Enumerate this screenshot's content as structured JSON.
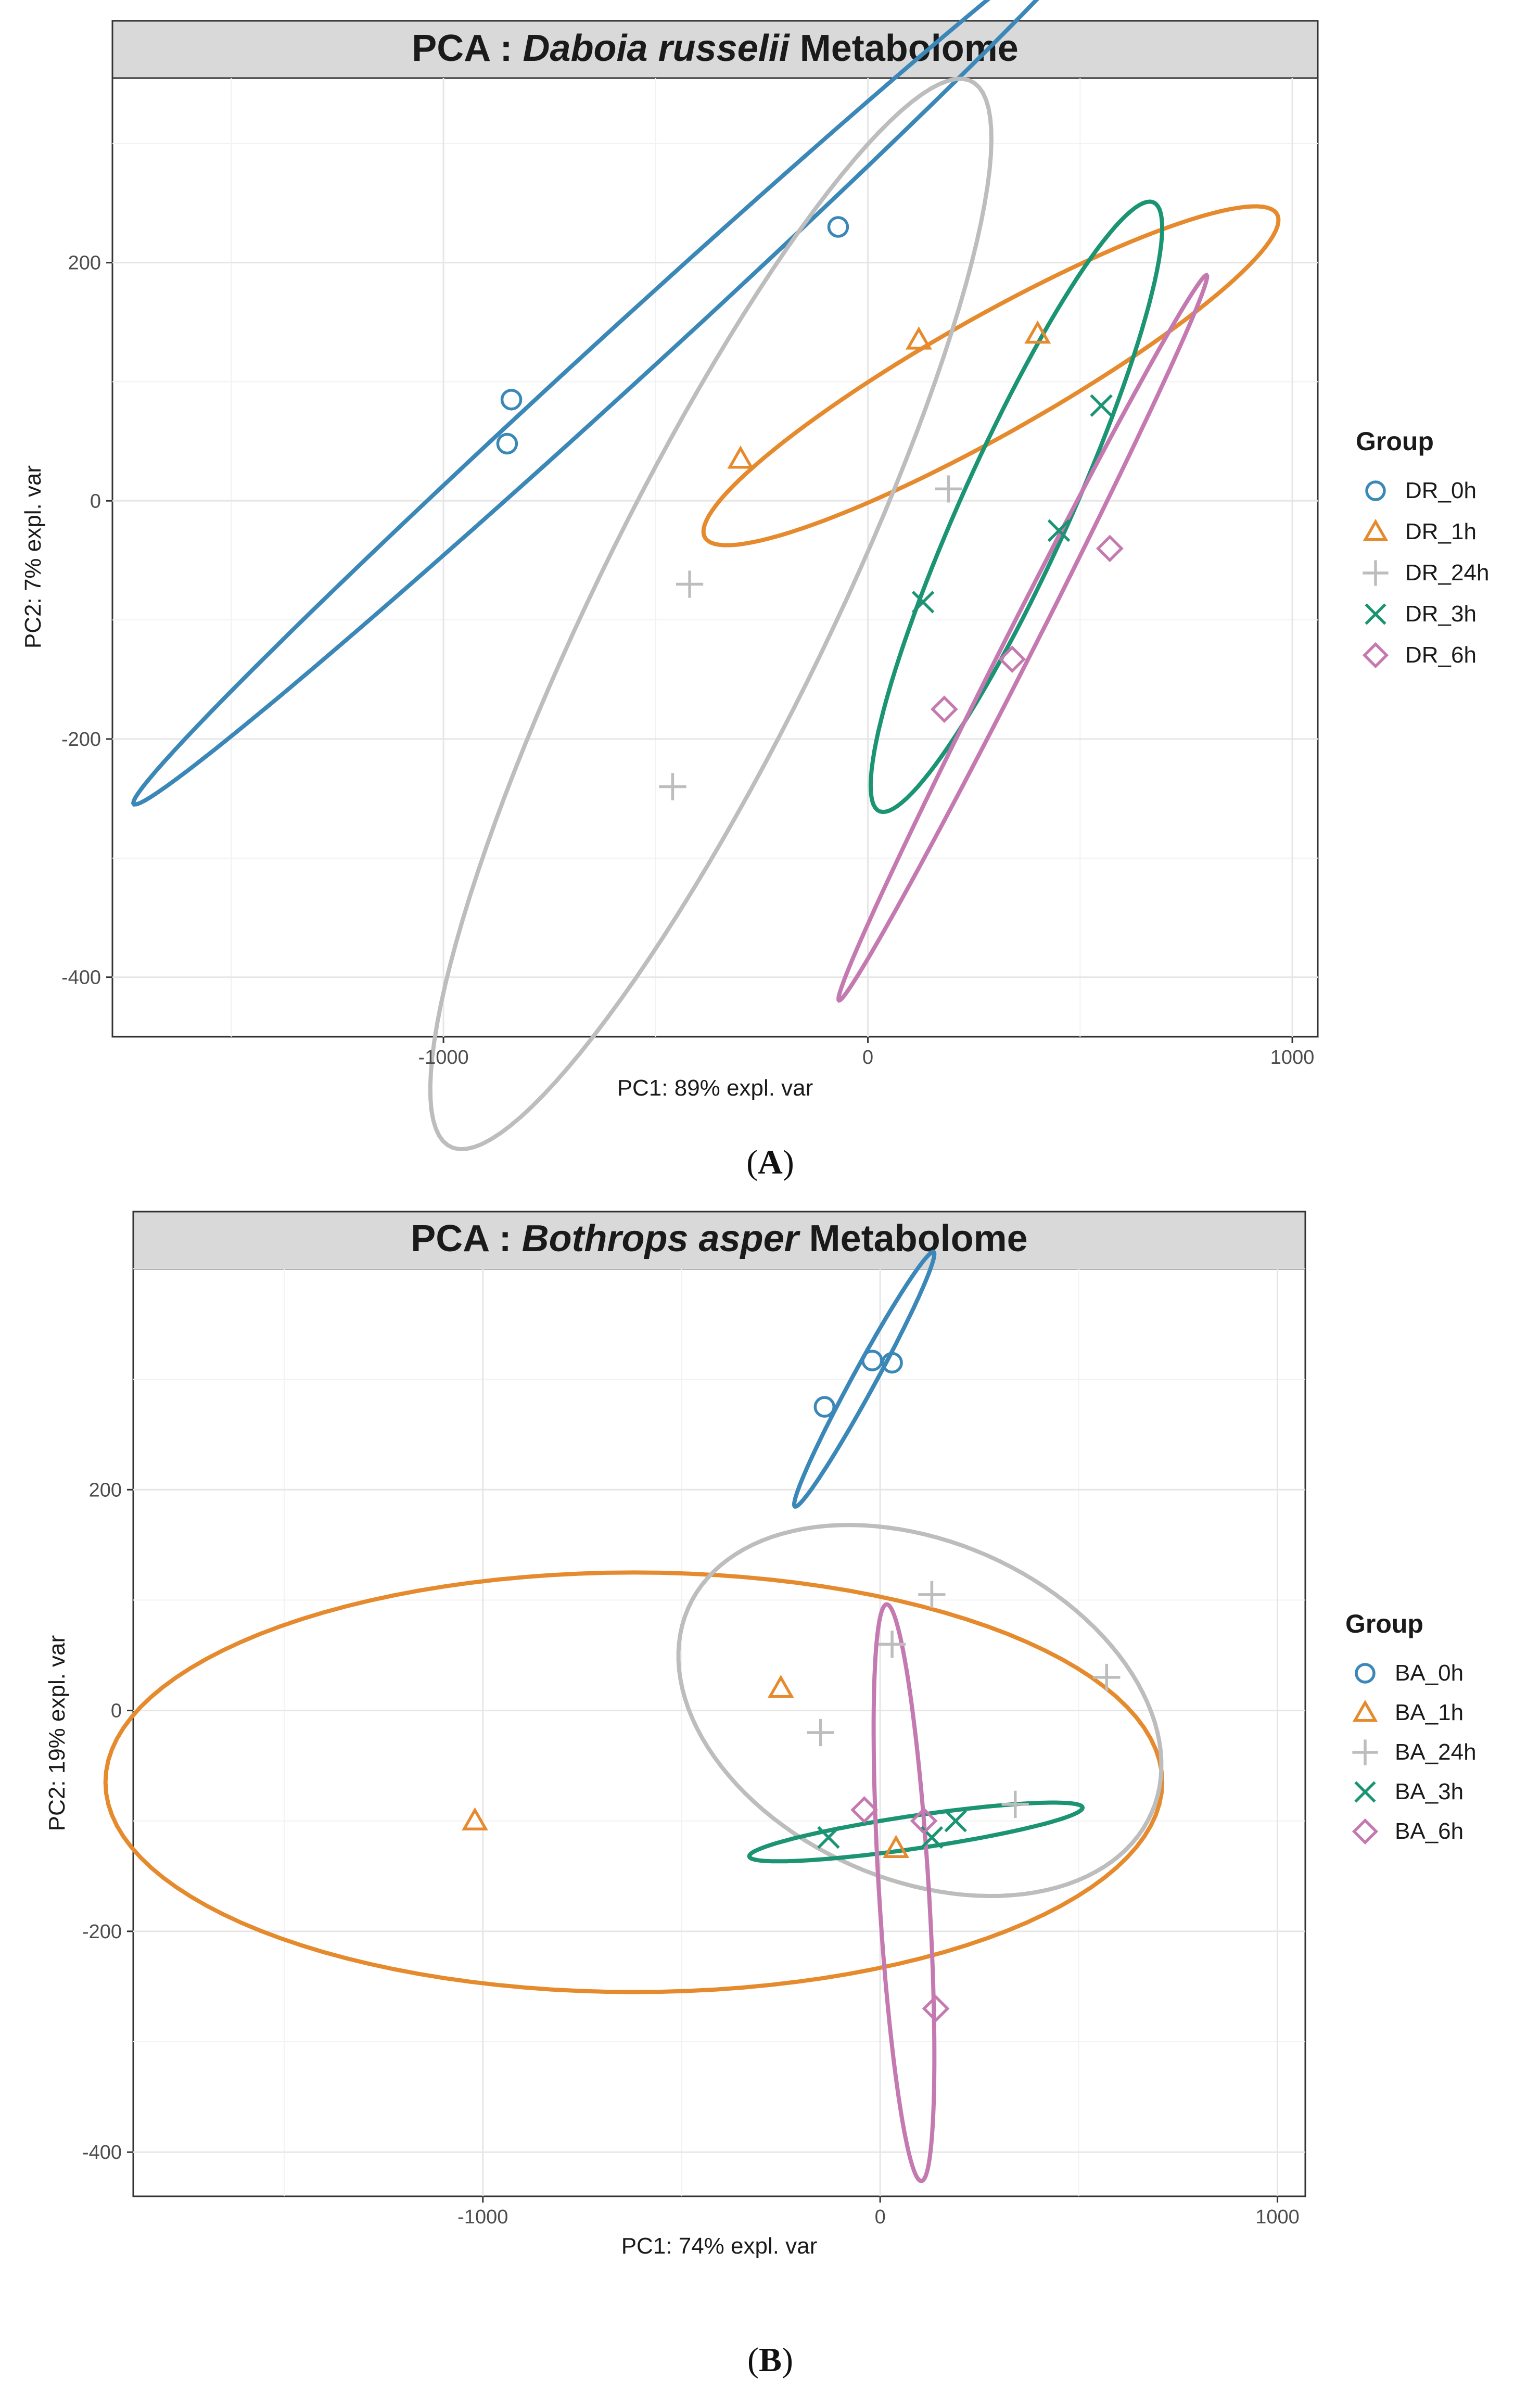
{
  "colors": {
    "DR_0h": "#3A87B8",
    "DR_1h": "#E68A2E",
    "DR_24h": "#BDBDBD",
    "DR_3h": "#1A9473",
    "DR_6h": "#C47AB0",
    "BA_0h": "#3A87B8",
    "BA_1h": "#E68A2E",
    "BA_24h": "#BDBDBD",
    "BA_3h": "#1A9473",
    "BA_6h": "#C47AB0"
  },
  "chart_data": [
    {
      "type": "scatter",
      "panel_label": "A",
      "title_prefix": "PCA : ",
      "title_species": "Daboia russelii",
      "title_suffix": " Metabolome",
      "xlabel": "PC1: 89% expl. var",
      "ylabel": "PC2: 7% expl. var",
      "xlim": [
        -1780,
        1060
      ],
      "ylim": [
        -450,
        355
      ],
      "xticks": [
        -1000,
        0,
        1000
      ],
      "yticks": [
        -400,
        -200,
        0,
        200
      ],
      "legend_title": "Group",
      "series": [
        {
          "name": "DR_0h",
          "marker": "circle",
          "points": [
            [
              -840,
              85
            ],
            [
              -850,
              48
            ],
            [
              -70,
              230
            ]
          ],
          "ellipse": {
            "cx": -580,
            "cy": 120,
            "a": 1210,
            "b": 30,
            "angle": 18
          }
        },
        {
          "name": "DR_1h",
          "marker": "triangle",
          "points": [
            [
              -300,
              35
            ],
            [
              120,
              135
            ],
            [
              400,
              140
            ]
          ],
          "ellipse": {
            "cx": 290,
            "cy": 105,
            "a": 690,
            "b": 55,
            "angle": 11
          }
        },
        {
          "name": "DR_24h",
          "marker": "plus",
          "points": [
            [
              -460,
              -240
            ],
            [
              -420,
              -70
            ],
            [
              190,
              10
            ]
          ],
          "ellipse": {
            "cx": -370,
            "cy": -95,
            "a": 780,
            "b": 175,
            "angle": 33
          }
        },
        {
          "name": "DR_3h",
          "marker": "x",
          "points": [
            [
              130,
              -85
            ],
            [
              450,
              -25
            ],
            [
              550,
              80
            ]
          ],
          "ellipse": {
            "cx": 350,
            "cy": -5,
            "a": 420,
            "b": 85,
            "angle": 36
          }
        },
        {
          "name": "DR_6h",
          "marker": "diamond",
          "points": [
            [
              180,
              -175
            ],
            [
              340,
              -133
            ],
            [
              570,
              -40
            ]
          ],
          "ellipse": {
            "cx": 365,
            "cy": -115,
            "a": 530,
            "b": 22,
            "angle": 35
          }
        }
      ]
    },
    {
      "type": "scatter",
      "panel_label": "B",
      "title_prefix": "PCA : ",
      "title_species": "Bothrops asper",
      "title_suffix": " Metabolome",
      "xlabel": "PC1: 74% expl. var",
      "ylabel": "PC2: 19% expl. var",
      "xlim": [
        -1880,
        1070
      ],
      "ylim": [
        -440,
        400
      ],
      "xticks": [
        -1000,
        0,
        1000
      ],
      "yticks": [
        -400,
        -200,
        0,
        200
      ],
      "legend_title": "Group",
      "series": [
        {
          "name": "BA_0h",
          "marker": "circle",
          "points": [
            [
              -140,
              275
            ],
            [
              -20,
              317
            ],
            [
              30,
              315
            ]
          ],
          "ellipse": {
            "cx": -40,
            "cy": 300,
            "a": 210,
            "b": 18,
            "angle": 33
          }
        },
        {
          "name": "BA_1h",
          "marker": "triangle",
          "points": [
            [
              -1020,
              -100
            ],
            [
              -250,
              20
            ],
            [
              40,
              -125
            ]
          ],
          "ellipse": {
            "cx": -620,
            "cy": -65,
            "a": 1330,
            "b": 190,
            "angle": 0
          }
        },
        {
          "name": "BA_24h",
          "marker": "plus",
          "points": [
            [
              -150,
              -20
            ],
            [
              30,
              60
            ],
            [
              130,
              105
            ],
            [
              340,
              -85
            ],
            [
              570,
              30
            ]
          ],
          "ellipse": {
            "cx": 100,
            "cy": 0,
            "a": 610,
            "b": 160,
            "angle": -5
          }
        },
        {
          "name": "BA_3h",
          "marker": "x",
          "points": [
            [
              -130,
              -115
            ],
            [
              130,
              -115
            ],
            [
              190,
              -100
            ]
          ],
          "ellipse": {
            "cx": 90,
            "cy": -110,
            "a": 420,
            "b": 15,
            "angle": 3
          }
        },
        {
          "name": "BA_6h",
          "marker": "diamond",
          "points": [
            [
              -40,
              -90
            ],
            [
              110,
              -100
            ],
            [
              140,
              -270
            ]
          ],
          "ellipse": {
            "cx": 60,
            "cy": -165,
            "a": 265,
            "b": 62,
            "angle": -80
          }
        }
      ]
    }
  ]
}
